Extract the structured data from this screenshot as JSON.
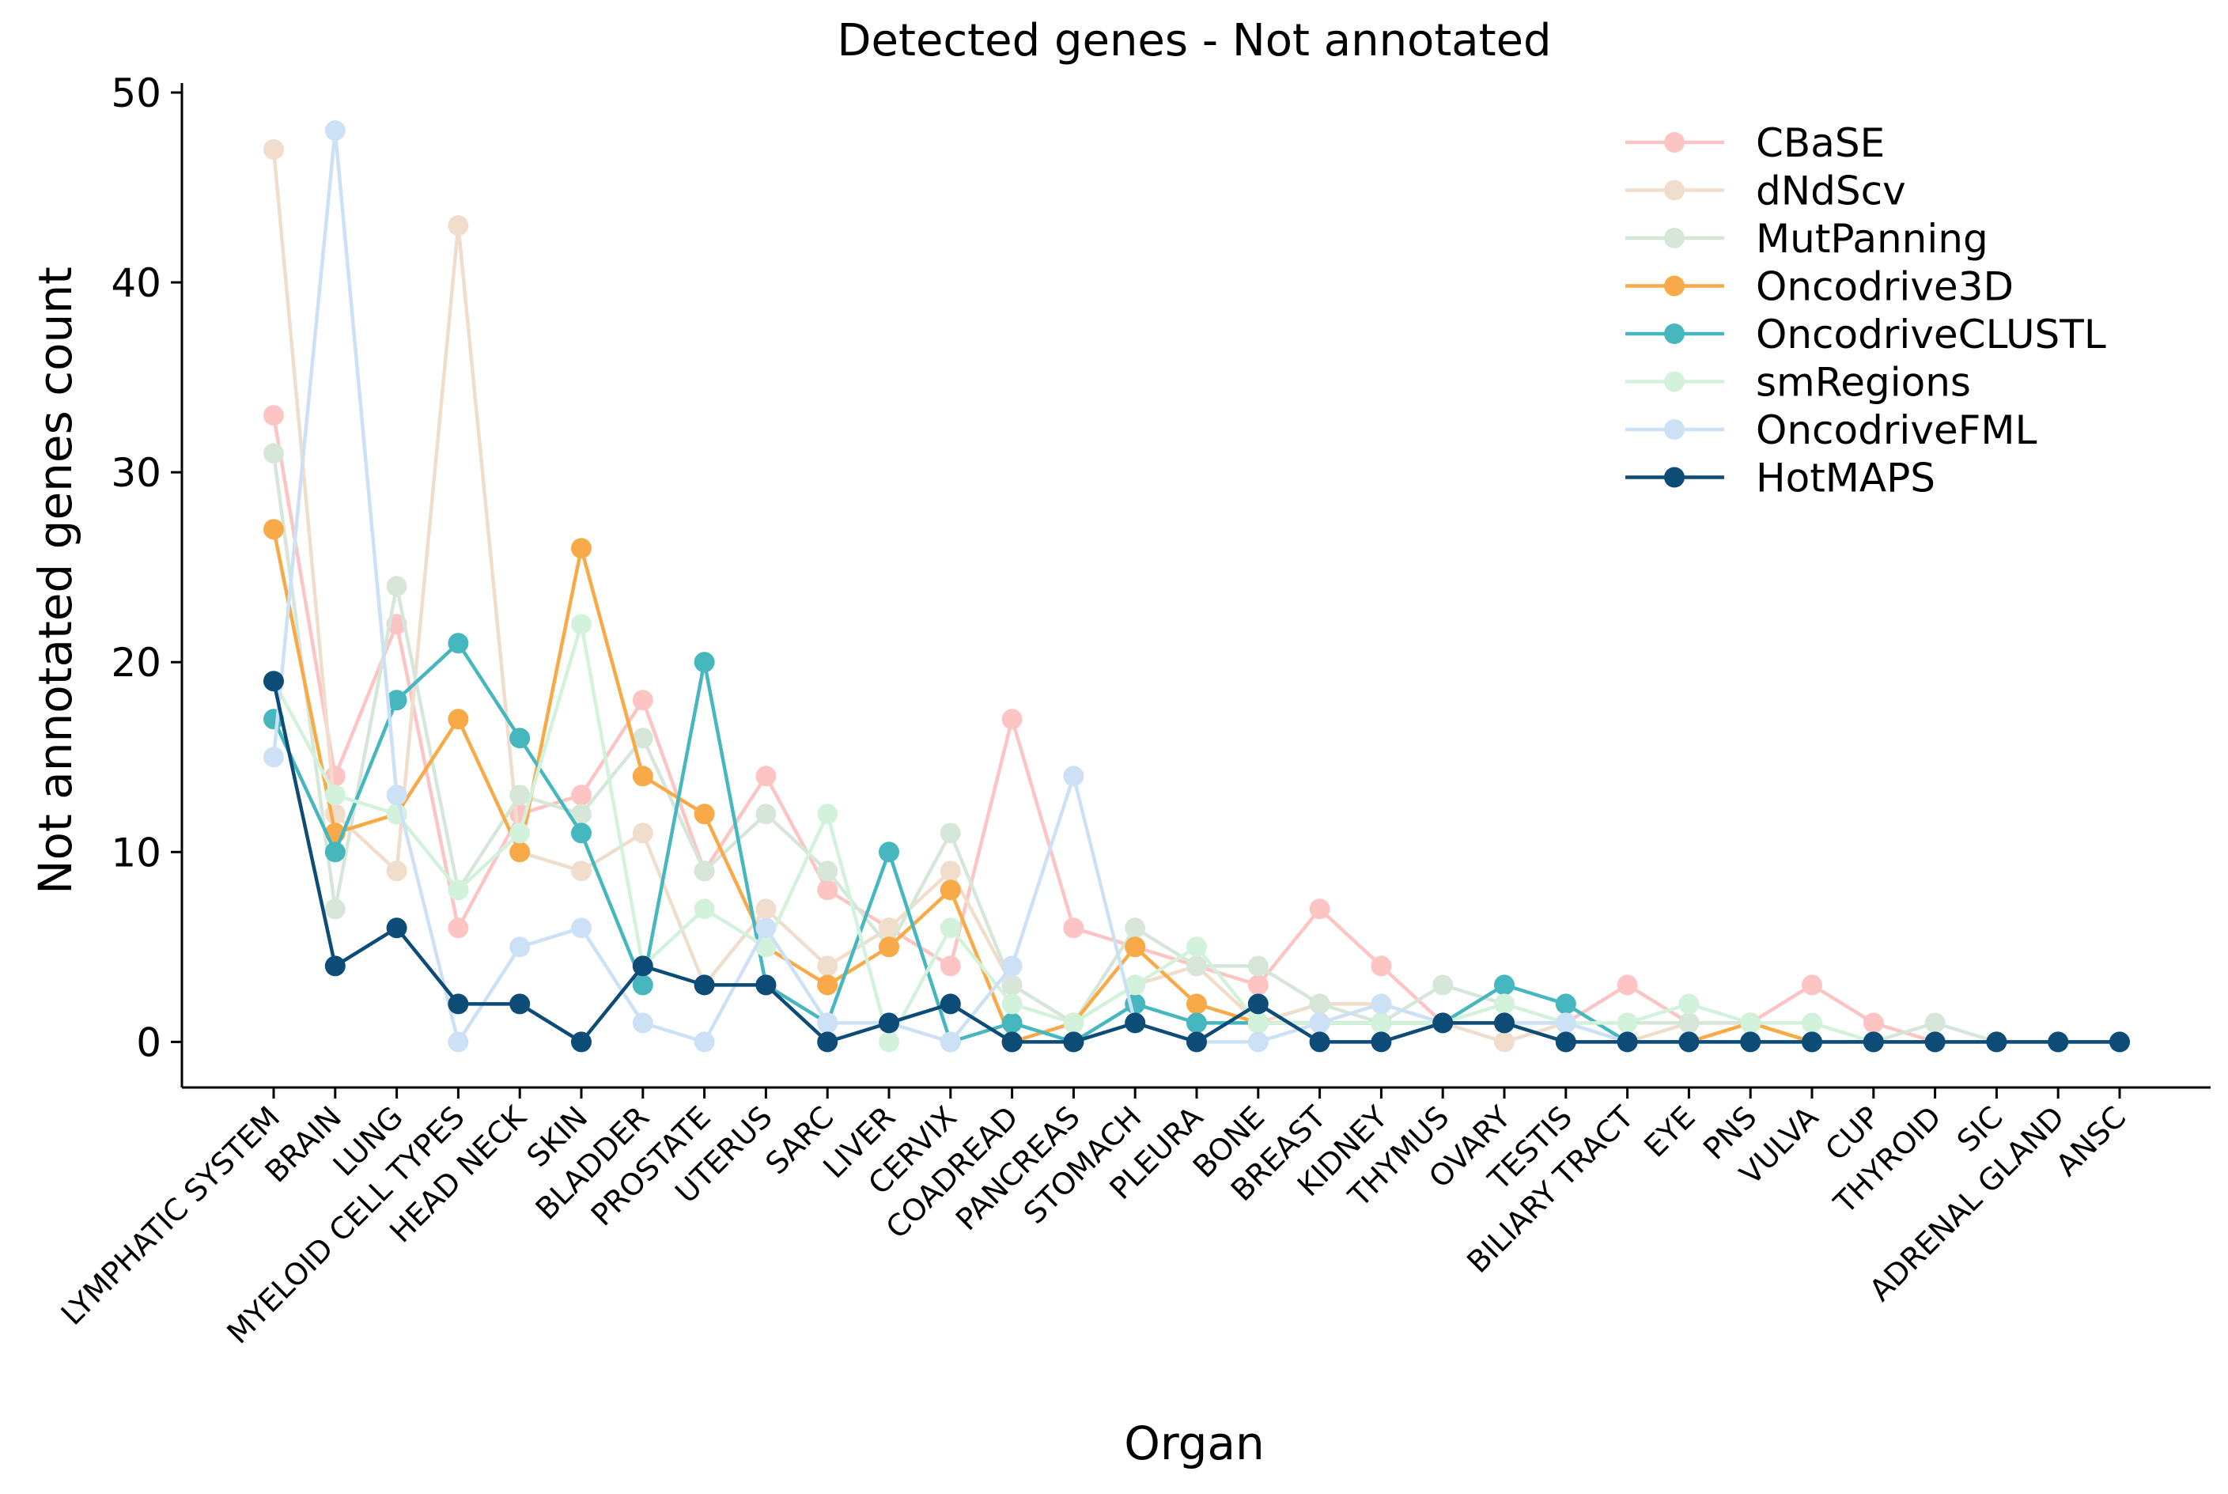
{
  "chart_data": {
    "type": "line",
    "title": "Detected genes - Not annotated",
    "xlabel": "Organ",
    "ylabel": "Not annotated genes count",
    "ylim": [
      -2.4,
      50.5
    ],
    "yticks": [
      0,
      10,
      20,
      30,
      40,
      50
    ],
    "grid": false,
    "legend_position": "top-right",
    "categories": [
      "LYMPHATIC SYSTEM",
      "BRAIN",
      "LUNG",
      "MYELOID CELL TYPES",
      "HEAD NECK",
      "SKIN",
      "BLADDER",
      "PROSTATE",
      "UTERUS",
      "SARC",
      "LIVER",
      "CERVIX",
      "COADREAD",
      "PANCREAS",
      "STOMACH",
      "PLEURA",
      "BONE",
      "BREAST",
      "KIDNEY",
      "THYMUS",
      "OVARY",
      "TESTIS",
      "BILIARY TRACT",
      "EYE",
      "PNS",
      "VULVA",
      "CUP",
      "THYROID",
      "SIC",
      "ADRENAL GLAND",
      "ANSC"
    ],
    "series": [
      {
        "name": "CBaSE",
        "color": "#fcc5c4",
        "values": [
          33,
          14,
          22,
          6,
          12,
          13,
          18,
          9,
          14,
          8,
          6,
          4,
          17,
          6,
          5,
          4,
          3,
          7,
          4,
          1,
          1,
          1,
          3,
          1,
          1,
          3,
          1,
          0,
          0,
          0,
          0
        ]
      },
      {
        "name": "dNdScv",
        "color": "#f1ddcb",
        "values": [
          47,
          12,
          9,
          43,
          10,
          9,
          11,
          3,
          7,
          4,
          6,
          9,
          3,
          1,
          3,
          4,
          1,
          2,
          2,
          1,
          0,
          1,
          0,
          1,
          1,
          0,
          0,
          0,
          0,
          0,
          0
        ]
      },
      {
        "name": "MutPanning",
        "color": "#d6e7da",
        "values": [
          31,
          7,
          24,
          8,
          13,
          12,
          16,
          9,
          12,
          9,
          5,
          11,
          3,
          1,
          6,
          4,
          4,
          2,
          1,
          3,
          2,
          1,
          1,
          1,
          1,
          0,
          0,
          1,
          0,
          0,
          0
        ]
      },
      {
        "name": "Oncodrive3D",
        "color": "#f8aa48",
        "values": [
          27,
          11,
          12,
          17,
          10,
          26,
          14,
          12,
          5,
          3,
          5,
          8,
          0,
          1,
          5,
          2,
          1,
          1,
          1,
          1,
          1,
          0,
          0,
          0,
          1,
          0,
          0,
          0,
          0,
          0,
          0
        ]
      },
      {
        "name": "OncodriveCLUSTL",
        "color": "#46b7bf",
        "values": [
          17,
          10,
          18,
          21,
          16,
          11,
          3,
          20,
          3,
          1,
          10,
          0,
          1,
          0,
          2,
          1,
          1,
          1,
          1,
          1,
          3,
          2,
          0,
          0,
          0,
          0,
          0,
          0,
          0,
          0,
          0
        ]
      },
      {
        "name": "smRegions",
        "color": "#d2f2dc",
        "values": [
          19,
          13,
          12,
          8,
          11,
          22,
          4,
          7,
          5,
          12,
          0,
          6,
          2,
          1,
          3,
          5,
          1,
          1,
          1,
          1,
          2,
          1,
          1,
          2,
          1,
          1,
          0,
          0,
          0,
          0,
          0
        ]
      },
      {
        "name": "OncodriveFML",
        "color": "#cde1f6",
        "values": [
          15,
          48,
          13,
          0,
          5,
          6,
          1,
          0,
          6,
          1,
          1,
          0,
          4,
          14,
          1,
          0,
          0,
          1,
          2,
          1,
          1,
          1,
          0,
          0,
          0,
          0,
          0,
          0,
          0,
          0,
          0
        ]
      },
      {
        "name": "HotMAPS",
        "color": "#0c4c77",
        "values": [
          19,
          4,
          6,
          2,
          2,
          0,
          4,
          3,
          3,
          0,
          1,
          2,
          0,
          0,
          1,
          0,
          2,
          0,
          0,
          1,
          1,
          0,
          0,
          0,
          0,
          0,
          0,
          0,
          0,
          0,
          0
        ]
      }
    ]
  }
}
